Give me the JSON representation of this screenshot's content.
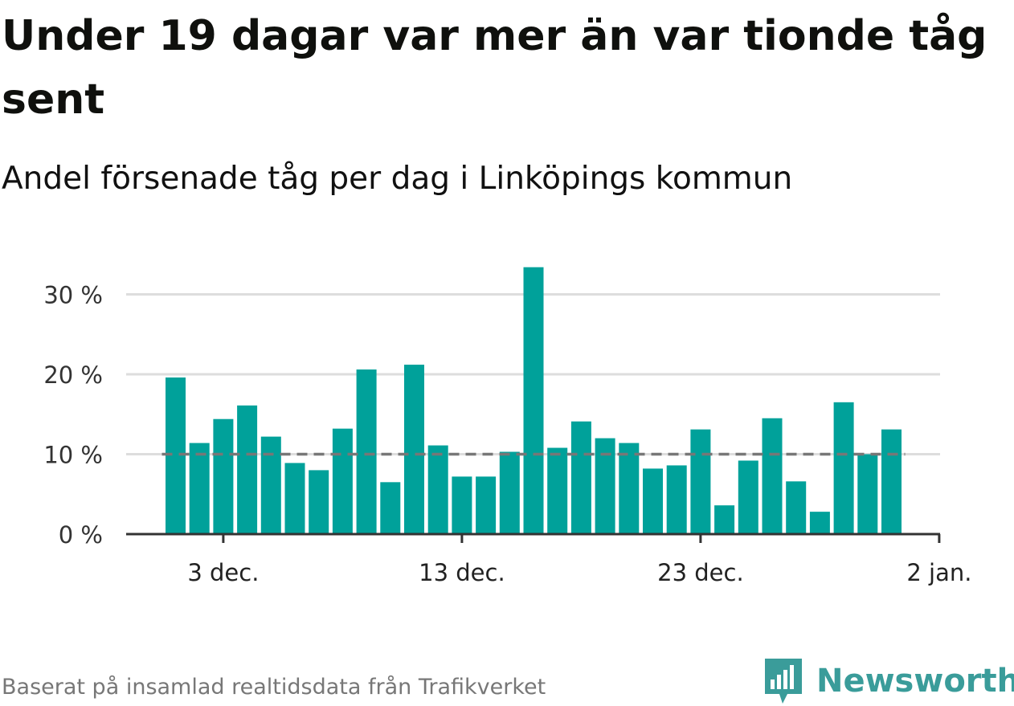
{
  "title": "Under 19 dagar var mer än var tionde tåg sent",
  "subtitle": "Andel försenade tåg per dag i Linköpings kommun",
  "footer": "Baserat på insamlad realtidsdata från Trafikverket",
  "brand": {
    "name": "Newsworthy",
    "color": "#3a9c9a",
    "icon": "bar-chart-speech-bubble-icon"
  },
  "colors": {
    "bar": "#00a19a",
    "threshold": "#777777",
    "grid": "#dddddd",
    "axis": "#333333"
  },
  "chart_data": {
    "type": "bar",
    "x": [
      "2018-12-01",
      "2018-12-02",
      "2018-12-03",
      "2018-12-04",
      "2018-12-05",
      "2018-12-06",
      "2018-12-07",
      "2018-12-08",
      "2018-12-09",
      "2018-12-10",
      "2018-12-11",
      "2018-12-12",
      "2018-12-13",
      "2018-12-14",
      "2018-12-15",
      "2018-12-16",
      "2018-12-17",
      "2018-12-18",
      "2018-12-19",
      "2018-12-20",
      "2018-12-21",
      "2018-12-22",
      "2018-12-23",
      "2018-12-24",
      "2018-12-25",
      "2018-12-26",
      "2018-12-27",
      "2018-12-28",
      "2018-12-29",
      "2018-12-30",
      "2018-12-31"
    ],
    "values": [
      19.6,
      11.4,
      14.4,
      16.1,
      12.2,
      8.9,
      8.0,
      13.2,
      20.6,
      6.5,
      21.2,
      11.1,
      7.2,
      7.2,
      10.3,
      33.4,
      10.8,
      14.1,
      12.0,
      11.4,
      8.2,
      8.6,
      13.1,
      3.6,
      9.2,
      14.5,
      6.6,
      2.8,
      16.5,
      10.0,
      13.1
    ],
    "threshold": 10,
    "ylim": [
      0,
      35
    ],
    "yticks": [
      0,
      10,
      20,
      30
    ],
    "ytick_labels": [
      "0 %",
      "10 %",
      "20 %",
      "30 %"
    ],
    "xticks": [
      "2018-12-03",
      "2018-12-13",
      "2018-12-23",
      "2019-01-02"
    ],
    "xtick_labels": [
      "3 dec.",
      "13 dec.",
      "23 dec.",
      "2 jan."
    ],
    "grid": true,
    "title": "",
    "xlabel": "",
    "ylabel": ""
  }
}
